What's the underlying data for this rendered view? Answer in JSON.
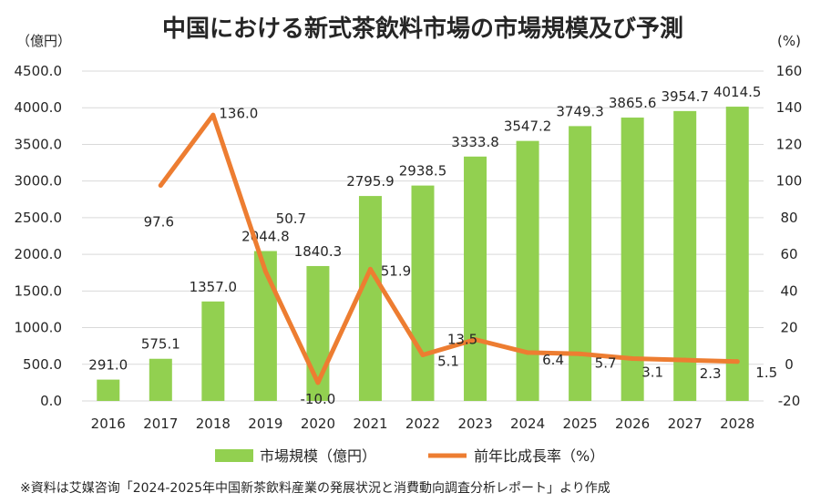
{
  "chart_data": {
    "type": "bar+line",
    "title": "中国における新式茶飲料市場の市場規模及び予測",
    "left_axis_unit": "（億円）",
    "right_axis_unit": "(%)",
    "categories": [
      "2016",
      "2017",
      "2018",
      "2019",
      "2020",
      "2021",
      "2022",
      "2023",
      "2024",
      "2025",
      "2026",
      "2027",
      "2028"
    ],
    "series": [
      {
        "name": "市場規模（億円）",
        "type": "bar",
        "axis": "left",
        "color": "#92d050",
        "values": [
          291.0,
          575.1,
          1357.0,
          2044.8,
          1840.3,
          2795.9,
          2938.5,
          3333.8,
          3547.2,
          3749.3,
          3865.6,
          3954.7,
          4014.5
        ],
        "labels": [
          "291.0",
          "575.1",
          "1357.0",
          "2044.8",
          "1840.3",
          "2795.9",
          "2938.5",
          "3333.8",
          "3547.2",
          "3749.3",
          "3865.6",
          "3954.7",
          "4014.5"
        ]
      },
      {
        "name": "前年比成長率（%）",
        "type": "line",
        "axis": "right",
        "color": "#ed7d31",
        "values": [
          null,
          97.6,
          136.0,
          50.7,
          -10.0,
          51.9,
          5.1,
          13.5,
          6.4,
          5.7,
          3.1,
          2.3,
          1.5
        ],
        "labels": [
          "",
          "97.6",
          "136.0",
          "50.7",
          "-10.0",
          "51.9",
          "5.1",
          "13.5",
          "6.4",
          "5.7",
          "3.1",
          "2.3",
          "1.5"
        ]
      }
    ],
    "left_axis": {
      "min": 0,
      "max": 4500,
      "step": 500,
      "tick_labels": [
        "0.0",
        "500.0",
        "1000.0",
        "1500.0",
        "2000.0",
        "2500.0",
        "3000.0",
        "3500.0",
        "4000.0",
        "4500.0"
      ]
    },
    "right_axis": {
      "min": -20,
      "max": 160,
      "step": 20,
      "tick_labels": [
        "-20",
        "0",
        "20",
        "40",
        "60",
        "80",
        "100",
        "120",
        "140",
        "160"
      ]
    },
    "legend": [
      "市場規模（億円）",
      "前年比成長率（%）"
    ],
    "legend_position": "bottom",
    "source_note": "※資料は艾媒咨询「2024-2025年中国新茶飲料産業の発展状況と消費動向調査分析レポート」より作成"
  }
}
